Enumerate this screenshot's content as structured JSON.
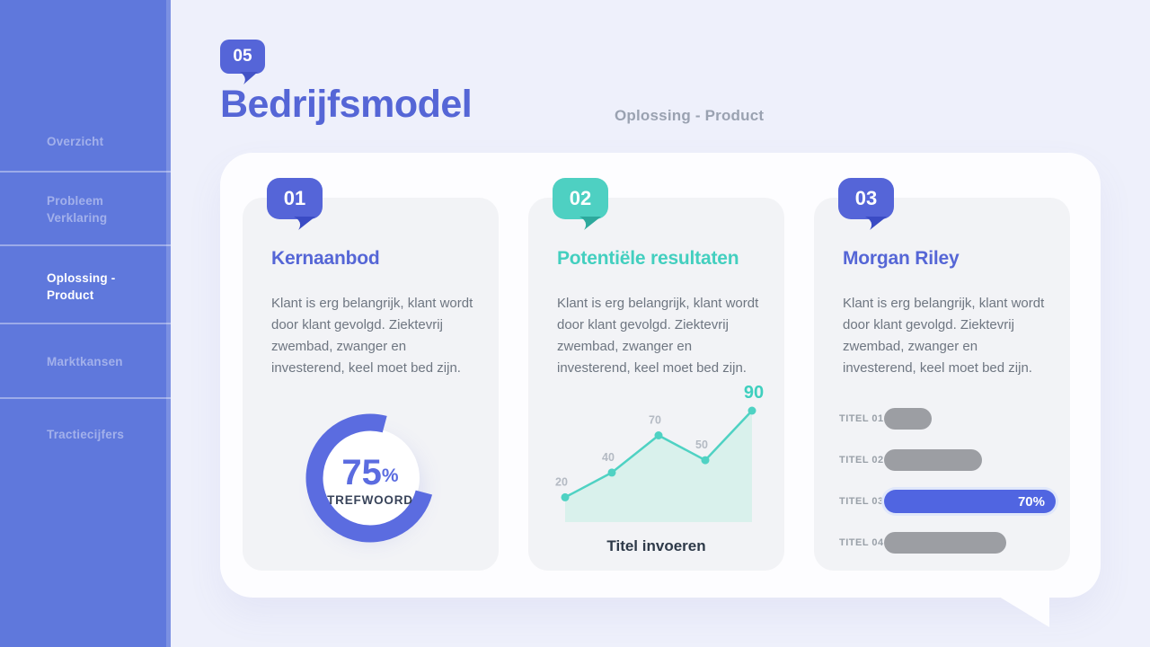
{
  "sidebar": {
    "active_index": 2,
    "items": [
      {
        "label": "Overzicht"
      },
      {
        "label": "Probleem Verklaring"
      },
      {
        "label": "Oplossing - Product"
      },
      {
        "label": "Marktkansen"
      },
      {
        "label": "Tractiecijfers"
      }
    ]
  },
  "header": {
    "badge": "05",
    "title": "Bedrijfsmodel",
    "subtitle": "Oplossing - Product"
  },
  "cards": [
    {
      "badge": "01",
      "title": "Kernaanbod",
      "body": "Klant is erg belangrijk, klant wordt door klant gevolgd. Ziektevrij zwembad, zwanger en investerend, keel moet bed zijn."
    },
    {
      "badge": "02",
      "title": "Potentiële resultaten",
      "body": "Klant is erg belangrijk, klant wordt door klant gevolgd. Ziektevrij zwembad, zwanger en investerend, keel moet bed zijn."
    },
    {
      "badge": "03",
      "title": "Morgan Riley",
      "body": "Klant is erg belangrijk, klant wordt door klant gevolgd. Ziektevrij zwembad, zwanger en investerend, keel moet bed zijn."
    }
  ],
  "chart_data": [
    {
      "type": "donut",
      "card": "Kernaanbod",
      "value": 75,
      "unit": "%",
      "label": "TREFWOORD",
      "arc_color": "#5b6ce0",
      "gap_position": "top-right"
    },
    {
      "type": "area",
      "card": "Potentiële resultaten",
      "x": [
        1,
        2,
        3,
        4,
        5
      ],
      "values": [
        20,
        40,
        70,
        50,
        90
      ],
      "highlight_index": 4,
      "caption": "Titel invoeren",
      "line_color": "#4fd2c3",
      "fill_color": "#d9f1ec",
      "label_color": "#b4bac3",
      "highlight_label_color": "#3fcfbe",
      "ylim": [
        0,
        100
      ],
      "grid": false,
      "legend": false
    },
    {
      "type": "bar",
      "card": "Morgan Riley",
      "orientation": "horizontal",
      "rows": [
        {
          "label": "TITEL 01",
          "width_pct": 28,
          "value_label": "",
          "highlight": false
        },
        {
          "label": "TITEL 02",
          "width_pct": 57,
          "value_label": "",
          "highlight": false
        },
        {
          "label": "TITEL 03",
          "width_pct": 100,
          "value_label": "70%",
          "highlight": true
        },
        {
          "label": "TITEL 04",
          "width_pct": 71,
          "value_label": "",
          "highlight": false
        }
      ],
      "bar_color": "#9c9ea3",
      "highlight_color": "#5065e1",
      "grid": false,
      "legend": false
    }
  ],
  "colors": {
    "sidebar_bg": "#5f78dc",
    "page_bg": "#eef0fb",
    "panel_bg": "#fdfdff",
    "card_bg": "#f2f3f6",
    "accent_blue": "#5565d8",
    "accent_teal": "#4ed0c2",
    "title_blue": "#5566d6",
    "title_teal": "#43cfbf",
    "body_text": "#6e7681",
    "subtitle_gray": "#9aa2b1"
  }
}
